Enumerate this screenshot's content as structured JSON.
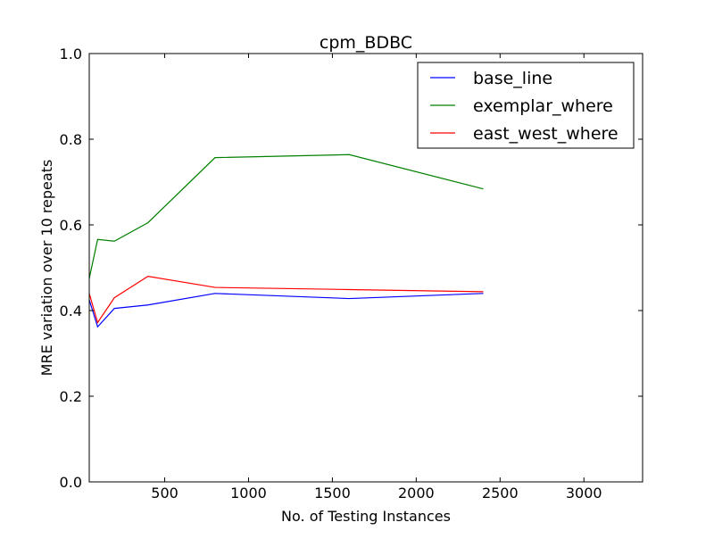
{
  "chart_data": {
    "type": "line",
    "title": "cpm_BDBC",
    "xlabel": "No. of Testing Instances",
    "ylabel": "MRE variation over 10 repeats",
    "xlim": [
      50,
      3350
    ],
    "ylim": [
      0.0,
      1.0
    ],
    "xticks": [
      500,
      1000,
      1500,
      2000,
      2500,
      3000
    ],
    "xtick_labels": [
      "500",
      "1000",
      "1500",
      "2000",
      "2500",
      "3000"
    ],
    "yticks": [
      0.0,
      0.2,
      0.4,
      0.6,
      0.8,
      1.0
    ],
    "ytick_labels": [
      "0.0",
      "0.2",
      "0.4",
      "0.6",
      "0.8",
      "1.0"
    ],
    "grid": false,
    "legend_position": "top-right",
    "x": [
      50,
      100,
      200,
      400,
      800,
      1600,
      2400
    ],
    "series": [
      {
        "name": "base_line",
        "color": "#0000ff",
        "values": [
          0.425,
          0.362,
          0.405,
          0.413,
          0.44,
          0.428,
          0.44
        ]
      },
      {
        "name": "exemplar_where",
        "color": "#008000",
        "values": [
          0.475,
          0.566,
          0.562,
          0.605,
          0.757,
          0.764,
          0.684
        ]
      },
      {
        "name": "east_west_where",
        "color": "#ff0000",
        "values": [
          0.44,
          0.372,
          0.43,
          0.48,
          0.454,
          0.449,
          0.444
        ]
      }
    ]
  }
}
